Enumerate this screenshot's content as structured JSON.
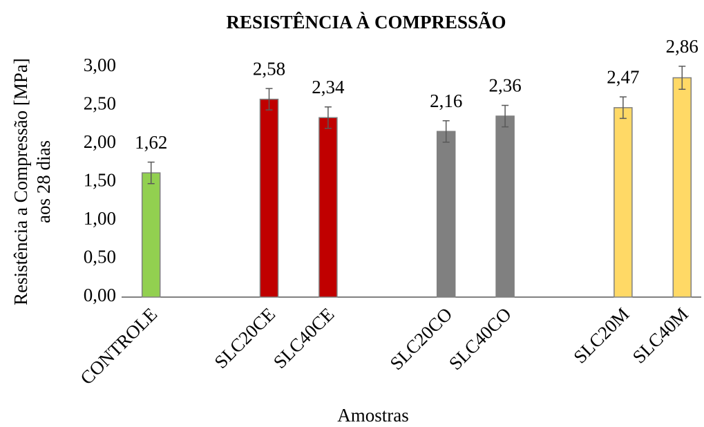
{
  "chart_data": {
    "type": "bar",
    "title": "RESISTÊNCIA À COMPRESSÃO",
    "ylabel": [
      "Resistência a Compressão [MPa]",
      "aos 28 dias"
    ],
    "xlabel": "Amostras",
    "categories": [
      "CONTROLE",
      null,
      "SLC20CE",
      "SLC40CE",
      null,
      "SLC20CO",
      "SLC40CO",
      null,
      "SLC20M",
      "SLC40M"
    ],
    "values": [
      1.62,
      null,
      2.58,
      2.34,
      null,
      2.16,
      2.36,
      null,
      2.47,
      2.86
    ],
    "value_labels": [
      "1,62",
      null,
      "2,58",
      "2,34",
      null,
      "2,16",
      "2,36",
      null,
      "2,47",
      "2,86"
    ],
    "errors": [
      0.14,
      null,
      0.14,
      0.14,
      null,
      0.14,
      0.14,
      null,
      0.14,
      0.15
    ],
    "colors": [
      "#92d050",
      null,
      "#c00000",
      "#c00000",
      null,
      "#808080",
      "#808080",
      null,
      "#ffd966",
      "#ffd966"
    ],
    "ylim": [
      0,
      3
    ],
    "yticks": [
      {
        "value": 0,
        "label": "0,00"
      },
      {
        "value": 0.5,
        "label": "0,50"
      },
      {
        "value": 1,
        "label": "1,00"
      },
      {
        "value": 1.5,
        "label": "1,50"
      },
      {
        "value": 2,
        "label": "2,00"
      },
      {
        "value": 2.5,
        "label": "2,50"
      },
      {
        "value": 3,
        "label": "3,00"
      }
    ],
    "grid": false
  }
}
